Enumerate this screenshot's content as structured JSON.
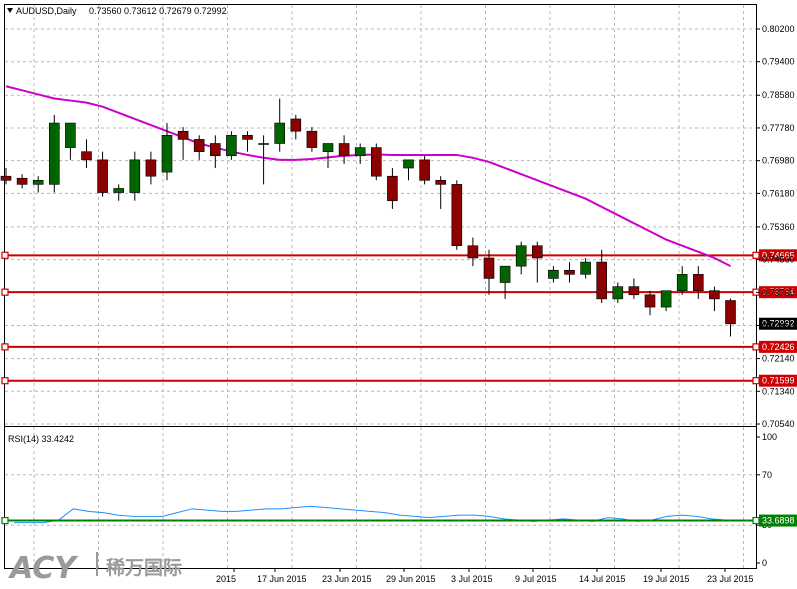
{
  "header": {
    "symbol": "AUDUSD,Daily",
    "ohlc": "0.73560 0.73612 0.72679 0.72992"
  },
  "watermark": {
    "brand": "ACY",
    "cn": "稀万国际"
  },
  "colors": {
    "bull": "#006400",
    "bear": "#8b0000",
    "ma": "#cc00cc",
    "hline": "#cc0000",
    "rsi": "#1e90ff",
    "rsi_level": "#008000",
    "grid": "#b8b8b8"
  },
  "chart_data": [
    {
      "type": "candlestick",
      "title": "AUDUSD,Daily",
      "ylim": [
        0.7054,
        0.802
      ],
      "y_ticks": [
        "0.80200",
        "0.79400",
        "0.78580",
        "0.77780",
        "0.76980",
        "0.76180",
        "0.75360",
        "0.74560",
        "0.73760",
        "0.72950",
        "0.72140",
        "0.71340",
        "0.70540"
      ],
      "x_tick_labels": [
        "2015",
        "17 Jun 2015",
        "23 Jun 2015",
        "29 Jun 2015",
        "3 Jul 2015",
        "9 Jul 2015",
        "14 Jul 2015",
        "19 Jul 2015",
        "23 Jul 2015"
      ],
      "candles": [
        [
          0.766,
          0.768,
          0.764,
          0.765
        ],
        [
          0.7655,
          0.7665,
          0.763,
          0.764
        ],
        [
          0.764,
          0.766,
          0.762,
          0.765
        ],
        [
          0.764,
          0.781,
          0.762,
          0.779
        ],
        [
          0.773,
          0.779,
          0.77,
          0.779
        ],
        [
          0.772,
          0.775,
          0.768,
          0.77
        ],
        [
          0.77,
          0.772,
          0.761,
          0.762
        ],
        [
          0.762,
          0.764,
          0.76,
          0.763
        ],
        [
          0.762,
          0.772,
          0.76,
          0.77
        ],
        [
          0.77,
          0.772,
          0.764,
          0.766
        ],
        [
          0.767,
          0.779,
          0.765,
          0.776
        ],
        [
          0.777,
          0.778,
          0.77,
          0.775
        ],
        [
          0.775,
          0.776,
          0.77,
          0.772
        ],
        [
          0.774,
          0.776,
          0.768,
          0.771
        ],
        [
          0.771,
          0.777,
          0.77,
          0.776
        ],
        [
          0.776,
          0.777,
          0.772,
          0.775
        ],
        [
          0.774,
          0.776,
          0.764,
          0.774
        ],
        [
          0.774,
          0.785,
          0.772,
          0.779
        ],
        [
          0.78,
          0.781,
          0.775,
          0.777
        ],
        [
          0.777,
          0.778,
          0.772,
          0.773
        ],
        [
          0.772,
          0.774,
          0.768,
          0.774
        ],
        [
          0.774,
          0.776,
          0.769,
          0.771
        ],
        [
          0.771,
          0.774,
          0.769,
          0.773
        ],
        [
          0.773,
          0.774,
          0.765,
          0.766
        ],
        [
          0.766,
          0.768,
          0.758,
          0.76
        ],
        [
          0.768,
          0.77,
          0.765,
          0.77
        ],
        [
          0.77,
          0.771,
          0.764,
          0.765
        ],
        [
          0.765,
          0.766,
          0.758,
          0.764
        ],
        [
          0.764,
          0.765,
          0.748,
          0.749
        ],
        [
          0.749,
          0.751,
          0.744,
          0.746
        ],
        [
          0.746,
          0.748,
          0.737,
          0.741
        ],
        [
          0.74,
          0.744,
          0.736,
          0.744
        ],
        [
          0.744,
          0.75,
          0.742,
          0.749
        ],
        [
          0.749,
          0.75,
          0.74,
          0.746
        ],
        [
          0.741,
          0.744,
          0.74,
          0.743
        ],
        [
          0.743,
          0.745,
          0.74,
          0.742
        ],
        [
          0.742,
          0.746,
          0.741,
          0.745
        ],
        [
          0.745,
          0.748,
          0.735,
          0.736
        ],
        [
          0.736,
          0.74,
          0.735,
          0.739
        ],
        [
          0.739,
          0.741,
          0.736,
          0.737
        ],
        [
          0.737,
          0.738,
          0.732,
          0.734
        ],
        [
          0.734,
          0.738,
          0.733,
          0.738
        ],
        [
          0.738,
          0.744,
          0.737,
          0.742
        ],
        [
          0.742,
          0.744,
          0.736,
          0.738
        ],
        [
          0.738,
          0.739,
          0.733,
          0.736
        ],
        [
          0.7356,
          0.7361,
          0.7268,
          0.7299
        ]
      ],
      "ma": {
        "color": "#cc00cc",
        "values": [
          0.788,
          0.787,
          0.786,
          0.785,
          0.7845,
          0.784,
          0.783,
          0.7815,
          0.78,
          0.7785,
          0.777,
          0.7755,
          0.774,
          0.773,
          0.772,
          0.7712,
          0.7705,
          0.77,
          0.77,
          0.7702,
          0.7706,
          0.771,
          0.7712,
          0.7713,
          0.7712,
          0.7712,
          0.7712,
          0.7712,
          0.7712,
          0.7705,
          0.7695,
          0.768,
          0.7665,
          0.765,
          0.7635,
          0.762,
          0.7605,
          0.7585,
          0.7565,
          0.7545,
          0.7525,
          0.7505,
          0.749,
          0.7475,
          0.746,
          0.744
        ]
      },
      "levels": [
        "0.74665",
        "0.73764",
        "0.72426",
        "0.71599"
      ],
      "last_price": "0.72992"
    },
    {
      "type": "line",
      "title": "RSI(14) 33.4242",
      "ylim": [
        0,
        100
      ],
      "y_ticks": [
        "100",
        "70",
        "30",
        "0"
      ],
      "values": [
        32,
        32,
        32,
        34,
        43,
        41,
        40,
        38,
        37,
        37,
        37,
        40,
        43,
        42,
        41,
        41,
        42,
        43,
        43,
        44,
        45,
        44,
        43,
        42,
        41,
        40,
        38,
        37,
        36,
        37,
        38,
        38,
        37,
        35,
        34,
        33,
        34,
        35,
        34,
        33,
        36,
        35,
        33,
        34,
        37,
        38,
        37,
        35,
        34,
        34,
        33
      ],
      "level": "33.6898"
    }
  ]
}
